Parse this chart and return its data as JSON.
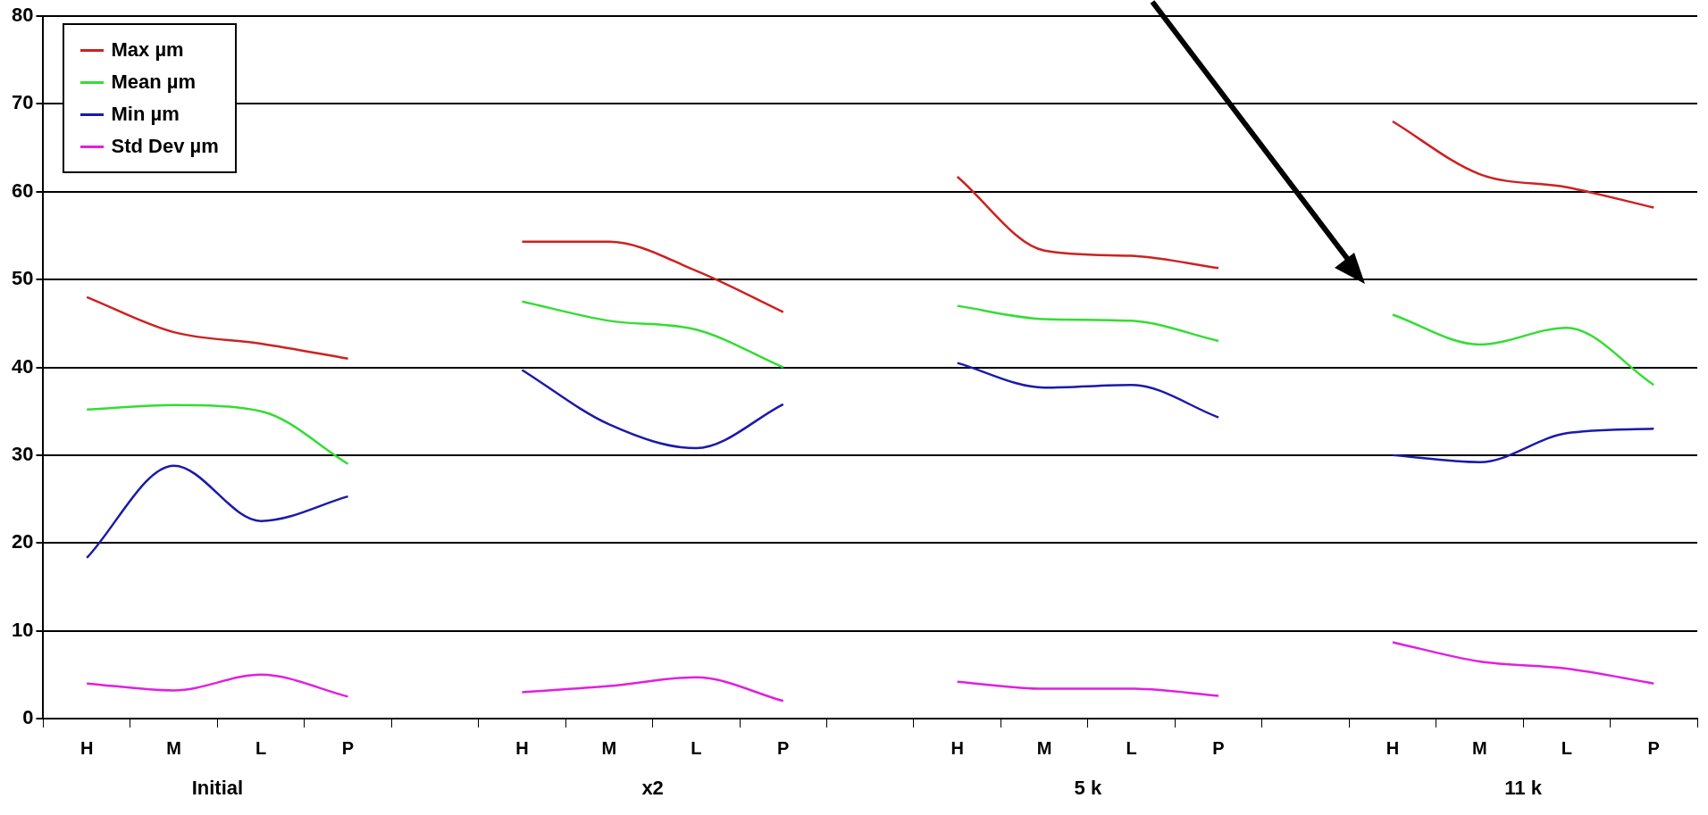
{
  "chart_data": {
    "type": "line",
    "categories": [
      "H",
      "M",
      "L",
      "P",
      null,
      "H",
      "M",
      "L",
      "P",
      null,
      "H",
      "M",
      "L",
      "P",
      null,
      "H",
      "M",
      "L",
      "P"
    ],
    "series": [
      {
        "name": "Max µm",
        "color": "#cc2222",
        "values": [
          48,
          44,
          42.7,
          41,
          null,
          54.3,
          54.3,
          51,
          46.3,
          null,
          61.7,
          53.3,
          52.7,
          51.3,
          null,
          68,
          62,
          60.5,
          58.2
        ]
      },
      {
        "name": "Mean µm",
        "color": "#33dd33",
        "values": [
          35.2,
          35.7,
          35,
          29,
          null,
          47.5,
          45.3,
          44.3,
          40,
          null,
          47,
          45.5,
          45.3,
          43,
          null,
          46,
          42.6,
          44.5,
          38
        ]
      },
      {
        "name": "Min µm",
        "color": "#1a1aaa",
        "values": [
          18.3,
          28.8,
          22.5,
          25.3,
          null,
          39.7,
          33.5,
          30.8,
          35.8,
          null,
          40.5,
          37.7,
          38,
          34.3,
          null,
          30,
          29.2,
          32.5,
          33
        ]
      },
      {
        "name": "Std Dev µm",
        "color": "#e020e0",
        "values": [
          4,
          3.2,
          5,
          2.5,
          null,
          3,
          3.7,
          4.7,
          2,
          null,
          4.2,
          3.4,
          3.4,
          2.6,
          null,
          8.7,
          6.5,
          5.7,
          4
        ]
      }
    ],
    "annotations": [
      "Initial",
      "x2",
      "5 k",
      "11 k"
    ],
    "ylim": [
      0,
      80
    ],
    "yticks": [
      0,
      10,
      20,
      30,
      40,
      50,
      60,
      70,
      80
    ],
    "grid": "y",
    "legend": "top left",
    "marker": "none",
    "line_style": "solid"
  }
}
